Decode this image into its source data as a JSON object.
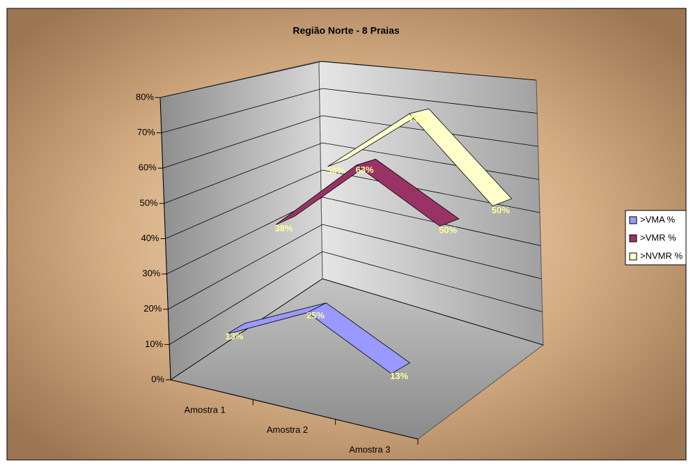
{
  "chart_data": {
    "type": "line3d",
    "title": "Região Norte - 8 Praias",
    "categories": [
      "Amostra 1",
      "Amostra 2",
      "Amostra 3"
    ],
    "series": [
      {
        "name": ">VMA %",
        "color": "#9999ff",
        "values": [
          13,
          25,
          13
        ],
        "value_labels": [
          "13%",
          "25%",
          "13%"
        ]
      },
      {
        "name": ">VMR %",
        "color": "#993366",
        "values": [
          38,
          63,
          50
        ],
        "value_labels": [
          "38%",
          "63%",
          "50%"
        ]
      },
      {
        "name": ">NVMR %",
        "color": "#ffffcc",
        "values": [
          50,
          75,
          50
        ],
        "value_labels": [
          "50%",
          "75%",
          "50%"
        ]
      }
    ],
    "ylim": [
      0,
      80
    ],
    "yticks": [
      {
        "value": 0,
        "label": "0%"
      },
      {
        "value": 10,
        "label": "10%"
      },
      {
        "value": 20,
        "label": "20%"
      },
      {
        "value": 30,
        "label": "30%"
      },
      {
        "value": 40,
        "label": "40%"
      },
      {
        "value": 50,
        "label": "50%"
      },
      {
        "value": 60,
        "label": "60%"
      },
      {
        "value": 70,
        "label": "70%"
      },
      {
        "value": 80,
        "label": "80%"
      }
    ],
    "grid": true,
    "legend": "right"
  }
}
